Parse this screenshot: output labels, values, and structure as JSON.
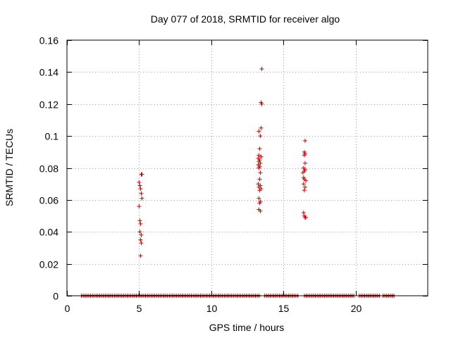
{
  "chart_data": {
    "type": "scatter",
    "title": "Day 077 of 2018, SRMTID for receiver algo",
    "xlabel": "GPS time / hours",
    "ylabel": "SRMTID / TECUs",
    "xlim": [
      0,
      25
    ],
    "ylim": [
      0,
      0.16
    ],
    "x_ticks": [
      0,
      5,
      10,
      15,
      20
    ],
    "x_tick_labels": [
      "0",
      "5",
      "10",
      "15",
      "20"
    ],
    "y_ticks": [
      0,
      0.02,
      0.04,
      0.06,
      0.08,
      0.1,
      0.12,
      0.14,
      0.16
    ],
    "y_tick_labels": [
      "0",
      "0.02",
      "0.04",
      "0.06",
      "0.08",
      "0.1",
      "0.12",
      "0.14",
      "0.16"
    ],
    "grid": true,
    "marker": "+",
    "colors": {
      "marker": "#cc0000",
      "grid": "#a0a0a0",
      "frame": "#000000"
    },
    "zero_baseline": {
      "x_start": 1.0,
      "x_end": 22.7,
      "y": 0,
      "gaps": [
        [
          13.4,
          13.7
        ],
        [
          16.05,
          16.45
        ],
        [
          19.9,
          20.25
        ],
        [
          21.7,
          21.9
        ]
      ]
    },
    "series": [
      {
        "name": "SRMTID",
        "points": [
          [
            5.0,
            0.071
          ],
          [
            5.05,
            0.069
          ],
          [
            5.2,
            0.076
          ],
          [
            5.15,
            0.076
          ],
          [
            5.1,
            0.067
          ],
          [
            5.15,
            0.064
          ],
          [
            5.2,
            0.061
          ],
          [
            5.0,
            0.056
          ],
          [
            5.05,
            0.047
          ],
          [
            5.1,
            0.045
          ],
          [
            5.05,
            0.04
          ],
          [
            5.15,
            0.038
          ],
          [
            5.1,
            0.035
          ],
          [
            5.15,
            0.033
          ],
          [
            5.1,
            0.025
          ],
          [
            13.5,
            0.142
          ],
          [
            13.45,
            0.121
          ],
          [
            13.5,
            0.12
          ],
          [
            13.45,
            0.105
          ],
          [
            13.3,
            0.103
          ],
          [
            13.4,
            0.1
          ],
          [
            13.35,
            0.092
          ],
          [
            13.3,
            0.088
          ],
          [
            13.45,
            0.087
          ],
          [
            13.25,
            0.086
          ],
          [
            13.35,
            0.085
          ],
          [
            13.3,
            0.084
          ],
          [
            13.4,
            0.083
          ],
          [
            13.25,
            0.082
          ],
          [
            13.35,
            0.081
          ],
          [
            13.3,
            0.08
          ],
          [
            13.4,
            0.077
          ],
          [
            13.35,
            0.073
          ],
          [
            13.25,
            0.07
          ],
          [
            13.4,
            0.069
          ],
          [
            13.3,
            0.068
          ],
          [
            13.45,
            0.067
          ],
          [
            13.35,
            0.066
          ],
          [
            13.3,
            0.061
          ],
          [
            13.4,
            0.059
          ],
          [
            13.35,
            0.058
          ],
          [
            13.3,
            0.054
          ],
          [
            13.4,
            0.053
          ],
          [
            16.5,
            0.097
          ],
          [
            16.45,
            0.09
          ],
          [
            16.5,
            0.089
          ],
          [
            16.45,
            0.088
          ],
          [
            16.5,
            0.083
          ],
          [
            16.4,
            0.08
          ],
          [
            16.5,
            0.079
          ],
          [
            16.45,
            0.078
          ],
          [
            16.35,
            0.077
          ],
          [
            16.4,
            0.074
          ],
          [
            16.45,
            0.073
          ],
          [
            16.55,
            0.072
          ],
          [
            16.4,
            0.07
          ],
          [
            16.5,
            0.068
          ],
          [
            16.45,
            0.066
          ],
          [
            16.4,
            0.052
          ],
          [
            16.45,
            0.05
          ],
          [
            16.5,
            0.049
          ],
          [
            16.55,
            0.049
          ]
        ]
      }
    ]
  }
}
